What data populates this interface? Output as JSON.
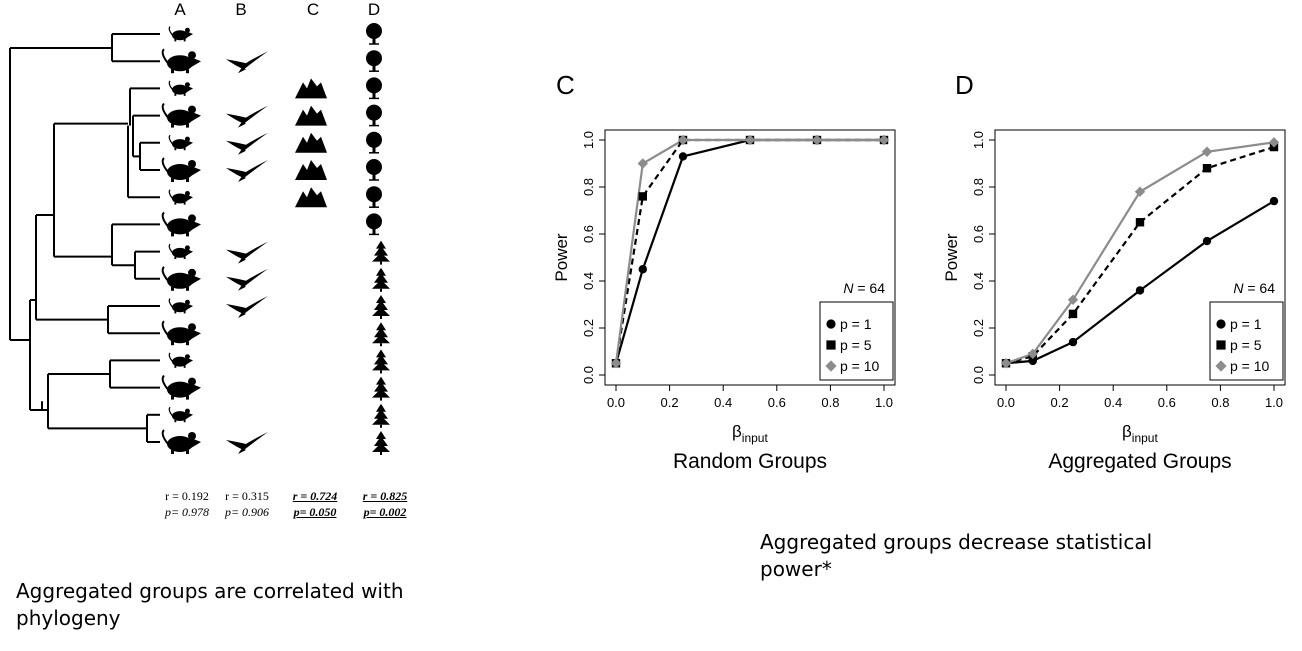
{
  "left": {
    "column_labels": [
      "A",
      "B",
      "C",
      "D"
    ],
    "stats": [
      {
        "r": "r = 0.192",
        "p": "p= 0.978",
        "significant": false
      },
      {
        "r": "r = 0.315",
        "p": "p= 0.906",
        "significant": false
      },
      {
        "r": "r = 0.724",
        "p": "p= 0.050",
        "significant": true
      },
      {
        "r": "r = 0.825",
        "p": "p= 0.002",
        "significant": true
      }
    ],
    "caption": "Aggregated groups are correlated with phylogeny",
    "icons": {
      "A": [
        "mouse-small",
        "mouse-large",
        "mouse-small",
        "mouse-large",
        "mouse-small",
        "mouse-large",
        "mouse-small",
        "mouse-large",
        "mouse-small",
        "mouse-large",
        "mouse-small",
        "mouse-large",
        "mouse-small",
        "mouse-large",
        "mouse-small",
        "mouse-large"
      ],
      "B": [
        false,
        true,
        false,
        true,
        true,
        true,
        false,
        false,
        true,
        true,
        true,
        false,
        false,
        false,
        false,
        true
      ],
      "C": [
        false,
        false,
        true,
        true,
        true,
        true,
        true,
        false,
        false,
        false,
        false,
        false,
        false,
        false,
        false,
        false
      ],
      "D": [
        "round-tree",
        "round-tree",
        "round-tree",
        "round-tree",
        "round-tree",
        "round-tree",
        "round-tree",
        "round-tree",
        "conifer",
        "conifer",
        "conifer",
        "conifer",
        "conifer",
        "conifer",
        "conifer",
        "conifer"
      ]
    }
  },
  "right_caption": "Aggregated groups decrease statistical power*",
  "chart_data": [
    {
      "type": "line",
      "panel": "C",
      "title": "Random Groups",
      "xlabel": "β",
      "xlabel_sub": "input",
      "ylabel": "Power",
      "xlim": [
        0,
        1
      ],
      "ylim": [
        0,
        1
      ],
      "xticks": [
        "0.0",
        "0.2",
        "0.4",
        "0.6",
        "0.8",
        "1.0"
      ],
      "yticks": [
        "0.0",
        "0.2",
        "0.4",
        "0.6",
        "0.8",
        "1.0"
      ],
      "annotation": "N = 64",
      "legend_position": "bottom-right",
      "x": [
        0,
        0.1,
        0.25,
        0.5,
        0.75,
        1.0
      ],
      "series": [
        {
          "name": "p = 1",
          "marker": "circle",
          "color": "#000000",
          "dash": "solid",
          "values": [
            0.05,
            0.45,
            0.93,
            1.0,
            1.0,
            1.0
          ]
        },
        {
          "name": "p = 5",
          "marker": "square",
          "color": "#000000",
          "dash": "dashed",
          "values": [
            0.05,
            0.76,
            1.0,
            1.0,
            1.0,
            1.0
          ]
        },
        {
          "name": "p = 10",
          "marker": "diamond",
          "color": "#8c8c8c",
          "dash": "solid",
          "values": [
            0.05,
            0.9,
            1.0,
            1.0,
            1.0,
            1.0
          ]
        }
      ]
    },
    {
      "type": "line",
      "panel": "D",
      "title": "Aggregated Groups",
      "xlabel": "β",
      "xlabel_sub": "input",
      "ylabel": "Power",
      "xlim": [
        0,
        1
      ],
      "ylim": [
        0,
        1
      ],
      "xticks": [
        "0.0",
        "0.2",
        "0.4",
        "0.6",
        "0.8",
        "1.0"
      ],
      "yticks": [
        "0.0",
        "0.2",
        "0.4",
        "0.6",
        "0.8",
        "1.0"
      ],
      "annotation": "N = 64",
      "legend_position": "bottom-right",
      "x": [
        0,
        0.1,
        0.25,
        0.5,
        0.75,
        1.0
      ],
      "series": [
        {
          "name": "p = 1",
          "marker": "circle",
          "color": "#000000",
          "dash": "solid",
          "values": [
            0.05,
            0.06,
            0.14,
            0.36,
            0.57,
            0.74
          ]
        },
        {
          "name": "p = 5",
          "marker": "square",
          "color": "#000000",
          "dash": "dashed",
          "values": [
            0.05,
            0.08,
            0.26,
            0.65,
            0.88,
            0.97
          ]
        },
        {
          "name": "p = 10",
          "marker": "diamond",
          "color": "#8c8c8c",
          "dash": "solid",
          "values": [
            0.05,
            0.09,
            0.32,
            0.78,
            0.95,
            0.99
          ]
        }
      ]
    }
  ]
}
